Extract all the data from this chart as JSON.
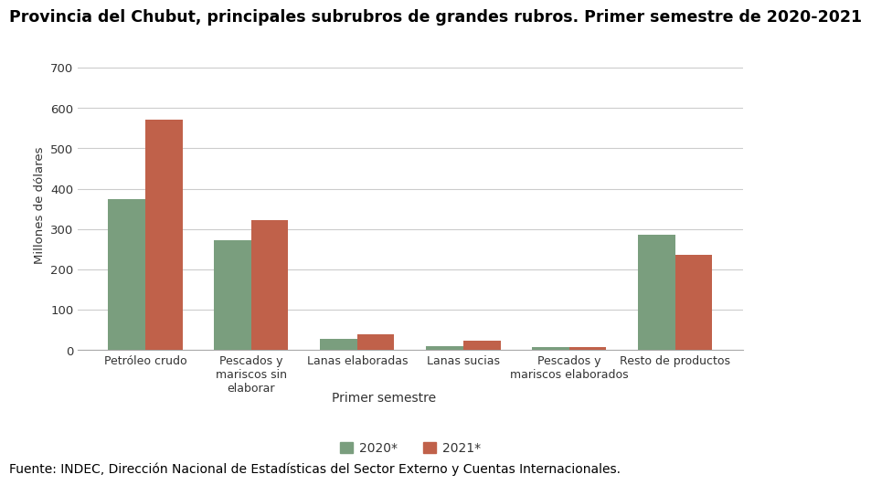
{
  "title": "Provincia del Chubut, principales subrubros de grandes rubros. Primer semestre de 2020-2021",
  "categories": [
    "Petróleo crudo",
    "Pescados y\nmariscos sin\nelaborar",
    "Lanas elaboradas",
    "Lanas sucias",
    "Pescados y\nmariscos elaborados",
    "Resto de productos"
  ],
  "values_2020": [
    375,
    272,
    27,
    10,
    8,
    285
  ],
  "values_2021": [
    572,
    322,
    38,
    22,
    8,
    235
  ],
  "color_2020": "#7a9e7e",
  "color_2021": "#c0614a",
  "ylabel": "Millones de dólares",
  "xlabel": "Primer semestre",
  "legend_labels": [
    "2020*",
    "2021*"
  ],
  "yticks": [
    0,
    100,
    200,
    300,
    400,
    500,
    600,
    700
  ],
  "ylim": [
    0,
    720
  ],
  "source_text": "Fuente: INDEC, Dirección Nacional de Estadísticas del Sector Externo y Cuentas Internacionales.",
  "background_color": "#ffffff",
  "grid_color": "#cccccc",
  "title_fontsize": 12.5,
  "axis_fontsize": 9.5,
  "legend_fontsize": 10,
  "source_fontsize": 10
}
